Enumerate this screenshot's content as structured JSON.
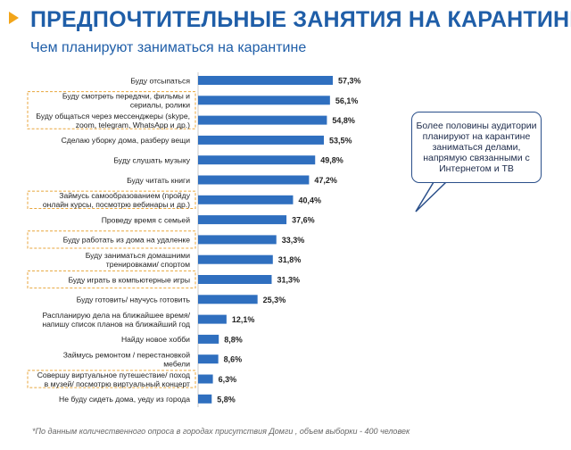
{
  "header": {
    "title": "ПРЕДПОЧТИТЕЛЬНЫЕ ЗАНЯТИЯ НА КАРАНТИНЕ",
    "subtitle": "Чем планируют заниматься на карантине"
  },
  "callout": {
    "text": "Более половины аудитории планируют на карантине заниматься делами, напрямую связанными с Интернетом и ТВ"
  },
  "footnote": "*По данным количественного опроса в городах присутствия Домги , объем выборки - 400 человек",
  "colors": {
    "bar": "#2f6fbf",
    "title": "#1f5ea8",
    "marker": "#f2a51a",
    "highlight_border": "#e8a63c"
  },
  "chart_data": {
    "type": "bar",
    "orientation": "horizontal",
    "title": "Чем планируют заниматься на карантине",
    "unit": "%",
    "xlim": [
      0,
      60
    ],
    "categories": [
      [
        "Буду отсыпаться"
      ],
      [
        "Буду смотреть передачи, фильмы и",
        "сериалы, ролики"
      ],
      [
        "Буду общаться через мессенджеры (skype,",
        "zoom, telegram, WhatsApp  и др.)"
      ],
      [
        "Сделаю уборку дома, разберу вещи"
      ],
      [
        "Буду слушать музыку"
      ],
      [
        "Буду читать книги"
      ],
      [
        "Займусь самообразованием (пройду",
        "онлайн курсы, посмотрю вебинары и др.)"
      ],
      [
        "Проведу время с семьей"
      ],
      [
        "Буду работать из дома на удаленке"
      ],
      [
        "Буду заниматься домашними",
        "тренировками/ спортом"
      ],
      [
        "Буду играть в компьютерные игры"
      ],
      [
        "Буду готовить/ научусь готовить"
      ],
      [
        "Распланирую дела на ближайшее время/",
        "напишу список планов на ближайший год"
      ],
      [
        "Найду новое хобби"
      ],
      [
        "Займусь ремонтом / перестановкой",
        "мебели"
      ],
      [
        "Совершу виртуальное путешествие/ поход",
        "в музей/ посмотрю виртуальный концерт"
      ],
      [
        "Не буду сидеть дома, уеду из города"
      ]
    ],
    "values": [
      57.3,
      56.1,
      54.8,
      53.5,
      49.8,
      47.2,
      40.4,
      37.6,
      33.3,
      31.8,
      31.3,
      25.3,
      12.1,
      8.8,
      8.6,
      6.3,
      5.8
    ],
    "value_labels": [
      "57,3%",
      "56,1%",
      "54,8%",
      "53,5%",
      "49,8%",
      "47,2%",
      "40,4%",
      "37,6%",
      "33,3%",
      "31,8%",
      "31,3%",
      "25,3%",
      "12,1%",
      "8,8%",
      "8,6%",
      "6,3%",
      "5,8%"
    ],
    "highlighted_groups": [
      [
        1,
        2
      ],
      [
        6
      ],
      [
        8
      ],
      [
        10
      ],
      [
        15
      ]
    ]
  }
}
